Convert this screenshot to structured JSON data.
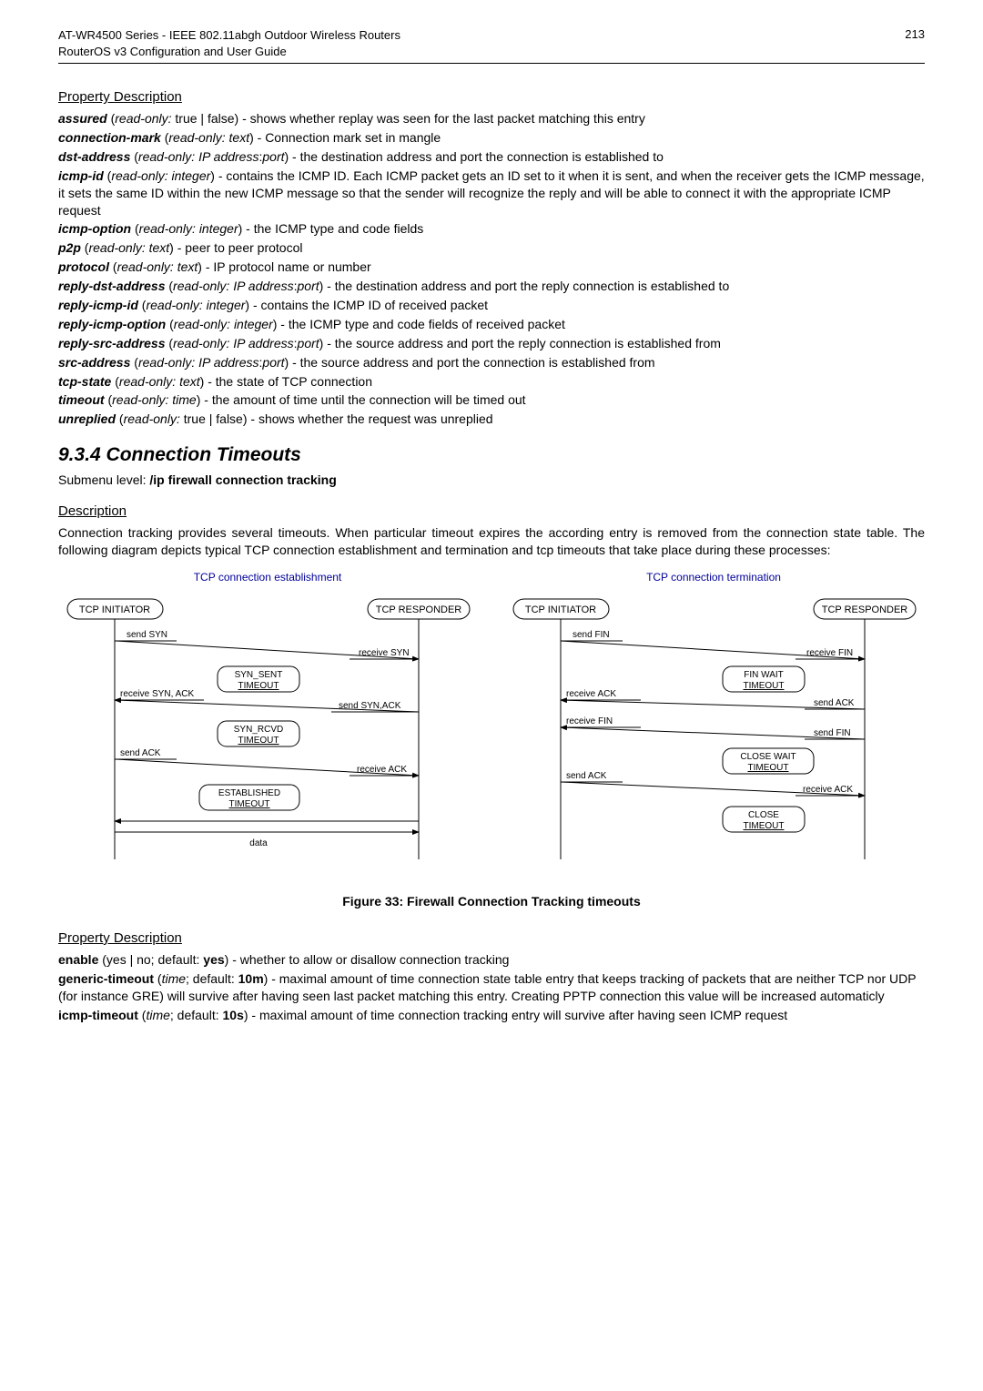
{
  "header": {
    "line1": "AT-WR4500 Series - IEEE 802.11abgh Outdoor Wireless Routers",
    "line2": "RouterOS v3 Configuration and User Guide",
    "page": "213"
  },
  "prop_desc_1": {
    "title": "Property Description",
    "items": [
      {
        "term": "assured",
        "meta": " (",
        "type": "read-only:",
        "val": " true | false) - shows whether replay was seen for the last packet matching this entry"
      },
      {
        "term": "connection-mark",
        "meta": " (",
        "type": "read-only: text",
        "val": ") - Connection mark set in mangle"
      },
      {
        "term": "dst-address",
        "meta": " (",
        "type": "read-only: IP address",
        "val": ":",
        "type2": "port",
        "val2": ") - the destination address and port the connection is established to"
      },
      {
        "term": "icmp-id",
        "meta": " (",
        "type": "read-only: integer",
        "val": ") - contains the ICMP ID. Each ICMP packet gets an ID set to it when it is sent, and when the receiver gets the ICMP message, it sets the same ID within the new ICMP message so that the sender will recognize the reply and will be able to connect it with the appropriate ICMP request"
      },
      {
        "term": "icmp-option",
        "meta": " (",
        "type": "read-only: integer",
        "val": ") - the ICMP type and code fields"
      },
      {
        "term": "p2p",
        "meta": " (",
        "type": "read-only: text",
        "val": ") - peer to peer protocol"
      },
      {
        "term": "protocol",
        "meta": " (",
        "type": "read-only: text",
        "val": ") - IP protocol name or number"
      },
      {
        "term": "reply-dst-address",
        "meta": " (",
        "type": "read-only: IP address",
        "val": ":",
        "type2": "port",
        "val2": ") - the destination address and port the reply connection is established to"
      },
      {
        "term": "reply-icmp-id",
        "meta": " (",
        "type": "read-only: integer",
        "val": ") - contains the ICMP ID of received packet"
      },
      {
        "term": "reply-icmp-option",
        "meta": " (",
        "type": "read-only: integer",
        "val": ") - the ICMP type and code fields of received packet"
      },
      {
        "term": "reply-src-address",
        "meta": " (",
        "type": "read-only: IP address",
        "val": ":",
        "type2": "port",
        "val2": ") - the source address and port the reply connection is established from"
      },
      {
        "term": "src-address",
        "meta": " (",
        "type": "read-only: IP address",
        "val": ":",
        "type2": "port",
        "val2": ") - the source address and port the connection is established from"
      },
      {
        "term": "tcp-state",
        "meta": " (",
        "type": "read-only: text",
        "val": ") - the state of TCP connection"
      },
      {
        "term": "timeout",
        "meta": " (",
        "type": "read-only: time",
        "val": ") - the amount of time until the connection will be timed out"
      },
      {
        "term": "unreplied",
        "meta": " (",
        "type": "read-only:",
        "val": " true | false) - shows whether the request was unreplied"
      }
    ]
  },
  "section934": {
    "title": "9.3.4  Connection Timeouts",
    "submenu_pre": "Submenu level: ",
    "submenu": "/ip firewall connection tracking"
  },
  "desc": {
    "title": "Description",
    "text": "Connection tracking provides several timeouts. When particular timeout expires the according entry is removed from the connection state table. The following diagram depicts typical TCP connection establishment and termination and tcp timeouts that take place during these processes:"
  },
  "figure": {
    "caption": "Figure 33: Firewall Connection Tracking timeouts",
    "left_title": "TCP connection establishment",
    "right_title": "TCP connection termination",
    "left": {
      "initiator": "TCP INITIATOR",
      "responder": "TCP RESPONDER",
      "sendSYN": "send SYN",
      "receiveSYN": "receive SYN",
      "synSent1": "SYN_SENT",
      "synSent2": "TIMEOUT",
      "recvSynAck": "receive SYN, ACK",
      "sendSynAck": "send SYN,ACK",
      "synRcvd1": "SYN_RCVD",
      "synRcvd2": "TIMEOUT",
      "sendAck": "send ACK",
      "receiveAck": "receive ACK",
      "est1": "ESTABLISHED",
      "est2": "TIMEOUT",
      "data": "data"
    },
    "right": {
      "initiator": "TCP INITIATOR",
      "responder": "TCP RESPONDER",
      "sendFin": "send FIN",
      "receiveFin": "receive FIN",
      "finWait1": "FIN WAIT",
      "finWait2": "TIMEOUT",
      "receiveAck": "receive ACK",
      "sendAck": "send ACK",
      "receiveFin2": "receive FIN",
      "sendFin2": "send FIN",
      "closeWait1": "CLOSE WAIT",
      "closeWait2": "TIMEOUT",
      "sendAck2": "send ACK",
      "receiveAck2": "receive ACK",
      "close1": "CLOSE",
      "close2": "TIMEOUT"
    }
  },
  "prop_desc_2": {
    "title": "Property Description",
    "enable_pre": "enable",
    "enable_mid": " (yes | no; default: ",
    "enable_def": "yes",
    "enable_post": ") - whether to allow or disallow connection tracking",
    "generic_pre": "generic-timeout",
    "generic_mid": " (",
    "generic_type": "time",
    "generic_mid2": "; default: ",
    "generic_def": "10m",
    "generic_post": ") - maximal amount of time connection state table entry that keeps tracking of packets that are neither TCP nor UDP (for instance GRE) will survive after having seen last packet matching this entry. Creating PPTP connection this value will be increased automaticly",
    "icmp_pre": "icmp-timeout",
    "icmp_mid": " (",
    "icmp_type": "time",
    "icmp_mid2": "; default: ",
    "icmp_def": "10s",
    "icmp_post": ") - maximal amount of time connection tracking entry will survive after having seen ICMP request"
  }
}
